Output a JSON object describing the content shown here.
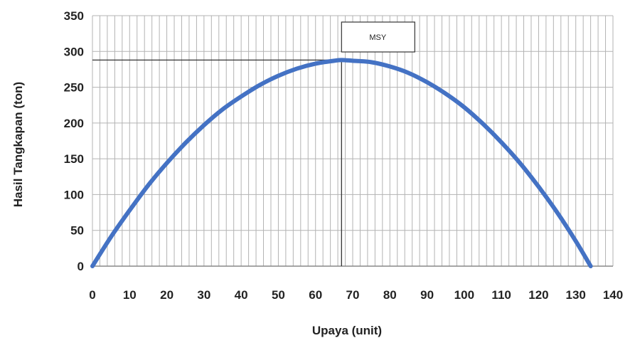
{
  "chart_data": {
    "type": "line",
    "title": "",
    "xlabel": "Upaya (unit)",
    "ylabel": "Hasil Tangkapan  (ton)",
    "xlim": [
      0,
      140
    ],
    "ylim": [
      0,
      350
    ],
    "x_ticks": [
      "0",
      "10",
      "20",
      "30",
      "40",
      "50",
      "60",
      "70",
      "80",
      "90",
      "100",
      "110",
      "120",
      "130",
      "140"
    ],
    "y_ticks": [
      "0",
      "50",
      "100",
      "150",
      "200",
      "250",
      "300",
      "350"
    ],
    "grid": {
      "major_y": 50,
      "minor_x": 2,
      "visible": true
    },
    "series": [
      {
        "color": "#4472c4",
        "x": [
          0,
          5,
          10,
          15,
          20,
          25,
          30,
          35,
          40,
          45,
          50,
          55,
          60,
          65,
          67,
          70,
          75,
          80,
          85,
          90,
          95,
          100,
          105,
          110,
          115,
          120,
          125,
          130,
          134
        ],
        "y": [
          0,
          41,
          78,
          113,
          144,
          172,
          197,
          219,
          237,
          253,
          266,
          276,
          283,
          287,
          288,
          287,
          285,
          279,
          270,
          257,
          241,
          222,
          199,
          173,
          144,
          111,
          75,
          35,
          0
        ]
      }
    ],
    "annotations": {
      "msy": {
        "label": "MSY",
        "x": 67,
        "y": 288
      }
    },
    "colors": {
      "curve": "#4472c4",
      "grid": "#b3b3b3",
      "axis": "#333333"
    }
  }
}
